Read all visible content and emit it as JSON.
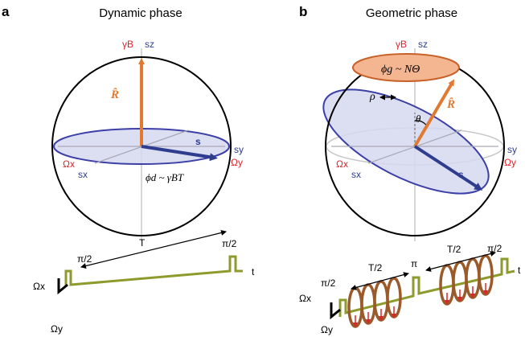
{
  "panels": [
    {
      "letter": "a",
      "title": "Dynamic phase",
      "axes": {
        "top_field": "γB",
        "top_spin": "sz",
        "left_field": "Ωx",
        "left_spin": "sx",
        "right_spin": "sy",
        "right_field": "Ωy"
      },
      "vector_R": "R̂",
      "spin": "s",
      "phase": "ϕd ~ γBT",
      "pulse": {
        "first": "π/2",
        "last": "π/2",
        "duration": "T",
        "time_axis": "t",
        "axis_x": "Ωx",
        "axis_y": "Ωy"
      }
    },
    {
      "letter": "b",
      "title": "Geometric phase",
      "axes": {
        "top_field": "γB",
        "top_spin": "sz",
        "left_field": "Ωx",
        "left_spin": "sx",
        "right_spin": "sy",
        "right_field": "Ωy"
      },
      "vector_R": "R̂",
      "spin": "s",
      "phase": "ϕg ~ NΘ",
      "rho": "ρ",
      "theta": "θ",
      "pulse": {
        "first": "π/2",
        "middle": "π",
        "last": "π/2",
        "half1": "T/2",
        "half2": "T/2",
        "time_axis": "t",
        "axis_x": "Ωx",
        "axis_y": "Ωy"
      }
    }
  ],
  "colors": {
    "field": "#d9262b",
    "spin": "#2f3d8f",
    "vector": "#e07a32",
    "pulse": "#8e9a2c",
    "helix": "#9a5a2a",
    "disk": "#d6d8f0"
  }
}
